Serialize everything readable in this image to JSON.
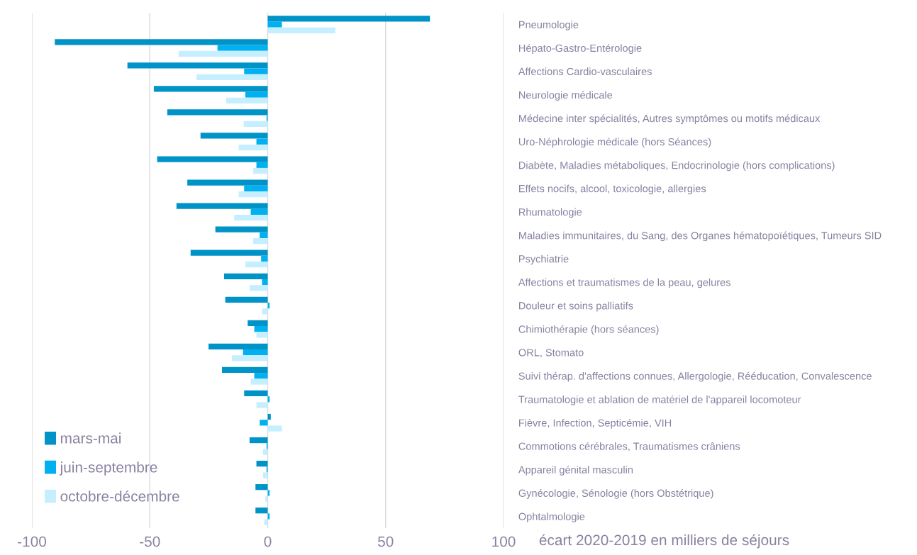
{
  "chart_data": {
    "type": "bar",
    "orientation": "horizontal",
    "xlabel": "écart 2020-2019 en milliers de séjours",
    "categories": [
      "Pneumologie",
      "Hépato-Gastro-Entérologie",
      "Affections Cardio-vasculaires",
      "Neurologie médicale",
      "Médecine inter spécialités, Autres symptômes ou motifs médicaux",
      "Uro-Néphrologie médicale (hors Séances)",
      "Diabète, Maladies métaboliques, Endocrinologie (hors complications)",
      "Effets nocifs, alcool, toxicologie, allergies",
      "Rhumatologie",
      "Maladies immunitaires, du Sang, des Organes hématopoïétiques, Tumeurs SID",
      "Psychiatrie",
      "Affections et traumatismes de la peau, gelures",
      "Douleur et soins palliatifs",
      "Chimiothérapie (hors séances)",
      "ORL, Stomato",
      "Suivi thérap. d'affections connues, Allergologie, Rééducation, Convalescence",
      "Traumatologie et ablation de matériel de l'appareil locomoteur",
      "Fièvre, Infection, Septicémie, VIH",
      "Commotions cérébrales, Traumatismes crâniens",
      "Appareil génital masculin",
      "Gynécologie, Sénologie (hors Obstétrique)",
      "Ophtalmologie"
    ],
    "series": [
      {
        "name": "mars-mai",
        "color": "#0093c8",
        "values": [
          68.8,
          -90.3,
          -59.5,
          -48.3,
          -42.6,
          -28.5,
          -46.9,
          -34.1,
          -38.7,
          -22.2,
          -32.7,
          -18.5,
          -18.0,
          -8.5,
          -25.1,
          -19.4,
          -10.0,
          1.3,
          -7.7,
          -4.8,
          -5.2,
          -5.2
        ]
      },
      {
        "name": "juin-septembre",
        "color": "#00b0f0",
        "values": [
          6.0,
          -21.3,
          -10.0,
          -9.5,
          -0.5,
          -4.8,
          -4.8,
          -10.0,
          -7.2,
          -3.4,
          -2.8,
          -2.4,
          0.8,
          -5.7,
          -10.5,
          -5.7,
          0.8,
          -3.4,
          -0.5,
          -0.5,
          0.8,
          0.8
        ]
      },
      {
        "name": "octobre-décembre",
        "color": "#c5efff",
        "values": [
          28.7,
          -37.8,
          -30.2,
          -17.6,
          -10.2,
          -12.3,
          -6.2,
          -12.3,
          -14.2,
          -6.2,
          -9.5,
          -7.7,
          -2.4,
          -4.8,
          -15.2,
          -7.2,
          -4.8,
          6.0,
          -2.0,
          -2.0,
          -1.0,
          -1.5
        ]
      }
    ],
    "xlim": [
      -100,
      100
    ],
    "xticks": [
      -100,
      -50,
      0,
      50,
      100
    ],
    "grid": "x",
    "legend": "bottom left"
  }
}
